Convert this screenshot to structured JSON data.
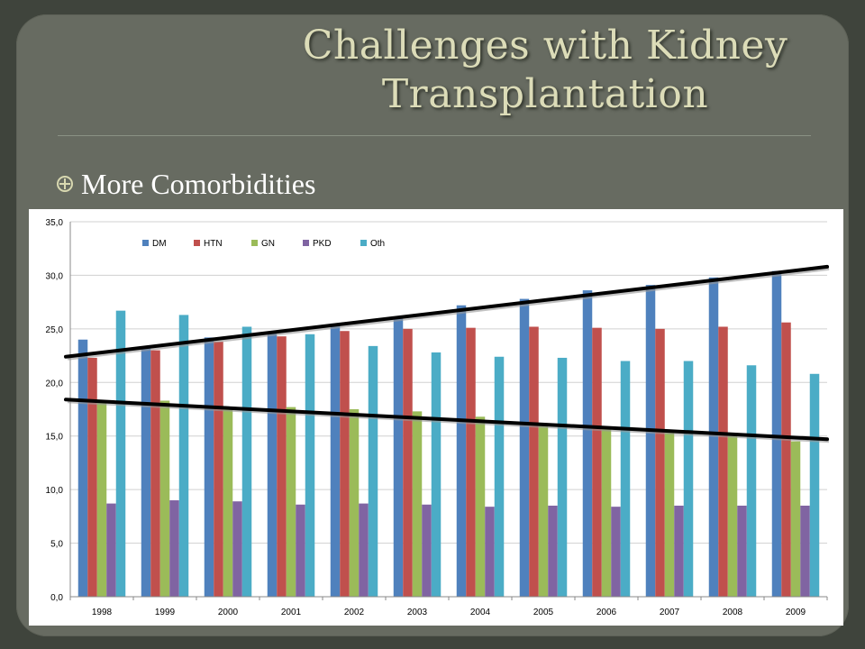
{
  "slide": {
    "title_line1": "Challenges with Kidney",
    "title_line2": "Transplantation",
    "bullet_text": "More Comorbidities",
    "bullet_icon": "circled-plus-icon"
  },
  "colors": {
    "background": "#676b61",
    "title": "#dcdcb8",
    "DM": "#4f81bd",
    "HTN": "#c0504d",
    "GN": "#9bbb59",
    "PKD": "#8064a2",
    "Oth": "#4bacc6",
    "trend": "#000000"
  },
  "chart_data": {
    "type": "bar",
    "title": "",
    "xlabel": "",
    "ylabel": "",
    "categories": [
      "1998",
      "1999",
      "2000",
      "2001",
      "2002",
      "2003",
      "2004",
      "2005",
      "2006",
      "2007",
      "2008",
      "2009"
    ],
    "series": [
      {
        "name": "DM",
        "values": [
          24.0,
          23.2,
          24.2,
          24.6,
          25.5,
          26.0,
          27.2,
          27.8,
          28.6,
          29.1,
          29.8,
          30.4
        ]
      },
      {
        "name": "HTN",
        "values": [
          22.3,
          23.0,
          23.8,
          24.3,
          24.8,
          25.0,
          25.1,
          25.2,
          25.1,
          25.0,
          25.2,
          25.6
        ]
      },
      {
        "name": "GN",
        "values": [
          18.2,
          18.3,
          17.6,
          17.7,
          17.5,
          17.3,
          16.8,
          16.2,
          15.8,
          15.3,
          15.0,
          14.5
        ]
      },
      {
        "name": "PKD",
        "values": [
          8.7,
          9.0,
          8.9,
          8.6,
          8.7,
          8.6,
          8.4,
          8.5,
          8.4,
          8.5,
          8.5,
          8.5
        ]
      },
      {
        "name": "Oth",
        "values": [
          26.7,
          26.3,
          25.2,
          24.5,
          23.4,
          22.8,
          22.4,
          22.3,
          22.0,
          22.0,
          21.6,
          20.8
        ]
      }
    ],
    "trendlines": [
      {
        "from": [
          0,
          22.4
        ],
        "to": [
          11,
          30.8
        ]
      },
      {
        "from": [
          0,
          18.4
        ],
        "to": [
          11,
          14.7
        ]
      }
    ],
    "ylim": [
      0,
      35
    ],
    "yticks": [
      "0,0",
      "5,0",
      "10,0",
      "15,0",
      "20,0",
      "25,0",
      "30,0",
      "35,0"
    ],
    "grid": true,
    "legend_position": "top"
  }
}
